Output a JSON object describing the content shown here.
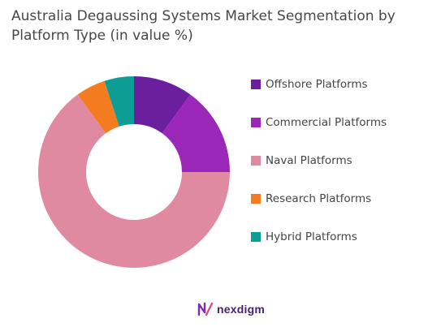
{
  "chart_data": {
    "type": "pie",
    "variant": "donut",
    "title": "Australia Degaussing Systems Market Segmentation by Platform Type (in value %)",
    "categories": [
      "Offshore Platforms",
      "Commercial Platforms",
      "Naval Platforms",
      "Research Platforms",
      "Hybrid Platforms"
    ],
    "values": [
      10,
      15,
      65,
      5,
      5
    ],
    "colors": [
      "#6b1e9e",
      "#9b27b8",
      "#e08aa2",
      "#f47c20",
      "#0e9d94"
    ],
    "legend_position": "right"
  },
  "brand": {
    "name": "nexdigm",
    "icon": "nexdigm-logo-icon"
  }
}
